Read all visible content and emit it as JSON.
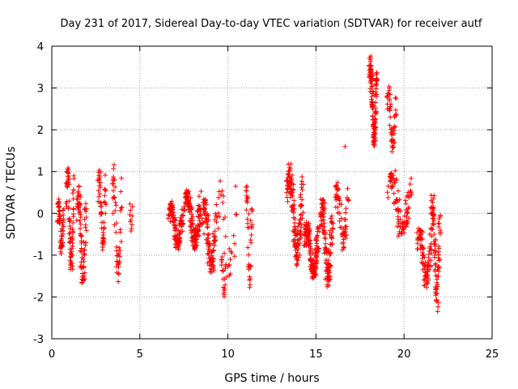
{
  "chart_data": {
    "type": "scatter",
    "title": "Day 231 of 2017, Sidereal Day-to-day VTEC variation (SDTVAR) for receiver autf",
    "xlabel": "GPS time / hours",
    "ylabel": "SDTVAR / TECUs",
    "xlim": [
      0,
      25
    ],
    "ylim": [
      -3,
      4
    ],
    "xticks": [
      "0",
      "5",
      "10",
      "15",
      "20",
      "25"
    ],
    "yticks": [
      "-3",
      "-2",
      "-1",
      "0",
      "1",
      "2",
      "3",
      "4"
    ],
    "grid": true,
    "marker": "+",
    "color": "#ff0000",
    "series": [
      {
        "name": "SDTVAR",
        "clusters": [
          {
            "x": [
              0.3,
              0.7
            ],
            "y": [
              -1.0,
              0.35
            ],
            "n": 60
          },
          {
            "x": [
              0.8,
              1.3
            ],
            "y": [
              -1.4,
              1.2
            ],
            "n": 80
          },
          {
            "x": [
              1.4,
              2.0
            ],
            "y": [
              -1.8,
              0.7
            ],
            "n": 80
          },
          {
            "x": [
              2.6,
              3.1
            ],
            "y": [
              -1.0,
              1.1
            ],
            "n": 50
          },
          {
            "x": [
              3.4,
              4.0
            ],
            "y": [
              -1.7,
              1.2
            ],
            "n": 50
          },
          {
            "x": [
              4.4,
              4.6
            ],
            "y": [
              -0.6,
              0.3
            ],
            "n": 10
          },
          {
            "x": [
              6.6,
              7.5
            ],
            "y": [
              -0.9,
              0.3
            ],
            "n": 120
          },
          {
            "x": [
              7.5,
              8.5
            ],
            "y": [
              -0.9,
              0.6
            ],
            "n": 150
          },
          {
            "x": [
              8.5,
              9.4
            ],
            "y": [
              -1.5,
              0.4
            ],
            "n": 110
          },
          {
            "x": [
              9.6,
              9.9
            ],
            "y": [
              -2.1,
              -1.0
            ],
            "n": 20
          },
          {
            "x": [
              9.3,
              10.6
            ],
            "y": [
              -1.7,
              0.9
            ],
            "n": 30
          },
          {
            "x": [
              11.0,
              11.4
            ],
            "y": [
              -1.8,
              0.8
            ],
            "n": 40
          },
          {
            "x": [
              13.3,
              14.3
            ],
            "y": [
              -1.3,
              1.2
            ],
            "n": 140
          },
          {
            "x": [
              14.3,
              15.2
            ],
            "y": [
              -1.6,
              -0.2
            ],
            "n": 150
          },
          {
            "x": [
              15.2,
              16.0
            ],
            "y": [
              -1.8,
              0.4
            ],
            "n": 120
          },
          {
            "x": [
              16.0,
              16.9
            ],
            "y": [
              -0.9,
              0.8
            ],
            "n": 60
          },
          {
            "x": [
              16.6,
              16.7
            ],
            "y": [
              1.6,
              1.6
            ],
            "n": 1
          },
          {
            "x": [
              18.0,
              18.5
            ],
            "y": [
              1.6,
              3.8
            ],
            "n": 130
          },
          {
            "x": [
              19.0,
              19.6
            ],
            "y": [
              1.4,
              3.1
            ],
            "n": 50
          },
          {
            "x": [
              19.0,
              20.5
            ],
            "y": [
              -0.6,
              1.1
            ],
            "n": 100
          },
          {
            "x": [
              20.7,
              21.6
            ],
            "y": [
              -1.8,
              -0.3
            ],
            "n": 90
          },
          {
            "x": [
              21.5,
              22.1
            ],
            "y": [
              -2.4,
              0.5
            ],
            "n": 90
          }
        ]
      }
    ]
  }
}
